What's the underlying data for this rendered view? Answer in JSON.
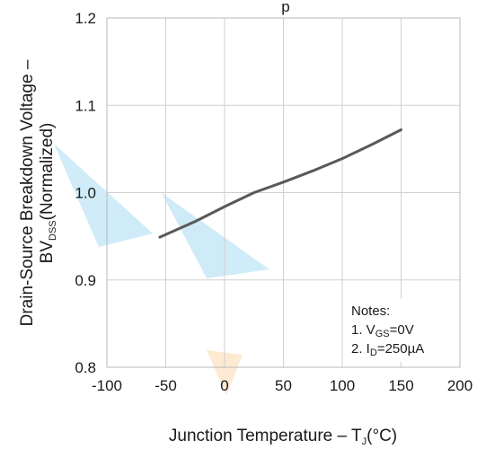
{
  "chart_data": {
    "type": "line",
    "title_fragment": "p",
    "xlabel": {
      "main": "Junction Temperature  –  T",
      "sub": "J",
      "unit": "(°C)"
    },
    "ylabel": {
      "line1": "Drain-Source Breakdown Voltage –",
      "bv": "BV",
      "bv_sub": "DSS",
      "bv_rest": "(Normalized)"
    },
    "xlim": [
      -100,
      200
    ],
    "ylim": [
      0.8,
      1.2
    ],
    "x_ticks": [
      "-100",
      "-50",
      "0",
      "50",
      "100",
      "150",
      "200"
    ],
    "y_ticks": [
      "0.8",
      "0.9",
      "1.0",
      "1.1",
      "1.2"
    ],
    "grid": true,
    "series": [
      {
        "x": [
          -55,
          -25,
          0,
          25,
          50,
          75,
          100,
          125,
          150
        ],
        "y": [
          0.949,
          0.967,
          0.984,
          1.0,
          1.012,
          1.025,
          1.039,
          1.055,
          1.072
        ],
        "color": "#595959"
      }
    ],
    "notes": {
      "title": "Notes:",
      "line1_prefix": "1. V",
      "line1_sub": "GS",
      "line1_rest": "=0V",
      "line2_prefix": "2. I",
      "line2_sub": "D",
      "line2_rest": "=250µA"
    }
  }
}
